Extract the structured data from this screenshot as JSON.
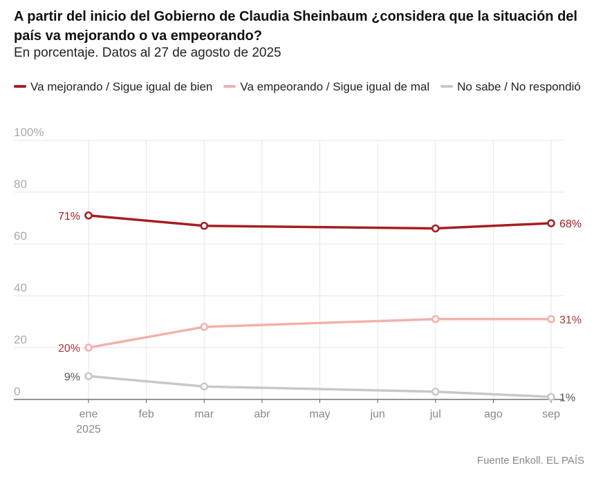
{
  "header": {
    "title": "A partir del inicio del Gobierno de Claudia Sheinbaum ¿considera que la situación del país va mejorando o va empeorando?",
    "subtitle": "En porcentaje. Datos al 27 de agosto de 2025"
  },
  "legend": {
    "items": [
      {
        "label": "Va mejorando / Sigue igual de bien",
        "color": "#a61e22"
      },
      {
        "label": "Va empeorando / Sigue igual de mal",
        "color": "#f2b1ac"
      },
      {
        "label": "No sabe / No respondió",
        "color": "#c8c8c8"
      }
    ]
  },
  "footer": {
    "source": "Fuente Enkoll. EL PAÍS"
  },
  "chart_data": {
    "type": "line",
    "x_ticks": [
      "ene",
      "feb",
      "mar",
      "abr",
      "may",
      "jun",
      "jul",
      "ago",
      "sep"
    ],
    "x_year_label": "2025",
    "y_ticks": [
      "100%",
      "80",
      "60",
      "40",
      "20",
      "0"
    ],
    "ylim": [
      0,
      100
    ],
    "grid": true,
    "legend_position": "top",
    "series": [
      {
        "name": "Va mejorando / Sigue igual de bien",
        "color": "#a61e22",
        "label_color": "#a61e22",
        "points": [
          {
            "x": "ene",
            "y": 71
          },
          {
            "x": "mar",
            "y": 67
          },
          {
            "x": "jul",
            "y": 66
          },
          {
            "x": "sep",
            "y": 68
          }
        ],
        "first_label": "71%",
        "last_label": "68%"
      },
      {
        "name": "Va empeorando / Sigue igual de mal",
        "color": "#f2b1ac",
        "label_color": "#a63a3a",
        "points": [
          {
            "x": "ene",
            "y": 20
          },
          {
            "x": "mar",
            "y": 28
          },
          {
            "x": "jul",
            "y": 31
          },
          {
            "x": "sep",
            "y": 31
          }
        ],
        "first_label": "20%",
        "last_label": "31%"
      },
      {
        "name": "No sabe / No respondió",
        "color": "#c8c8c8",
        "label_color": "#555555",
        "points": [
          {
            "x": "ene",
            "y": 9
          },
          {
            "x": "mar",
            "y": 5
          },
          {
            "x": "jul",
            "y": 3
          },
          {
            "x": "sep",
            "y": 1
          }
        ],
        "first_label": "9%",
        "last_label": "1%"
      }
    ]
  }
}
